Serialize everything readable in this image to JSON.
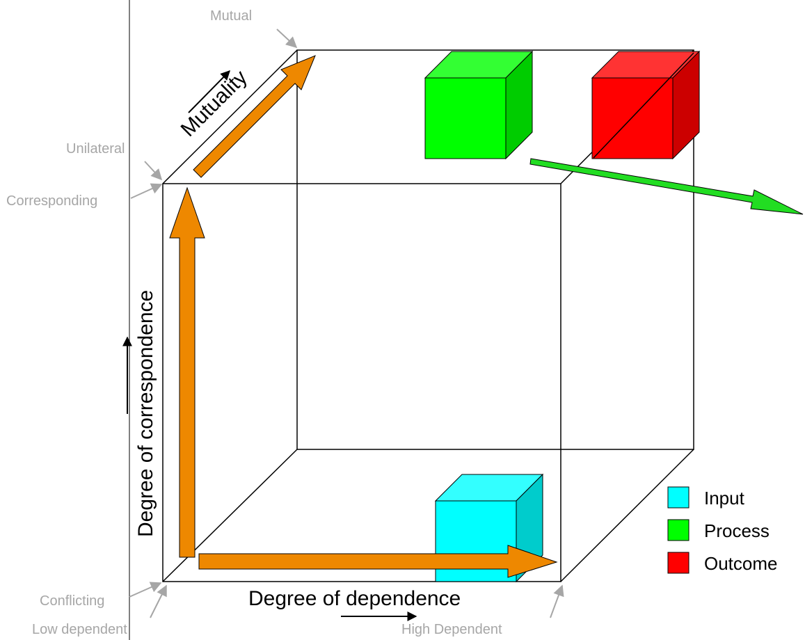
{
  "labels": {
    "mutual": "Mutual",
    "unilateral": "Unilateral",
    "corresponding": "Corresponding",
    "conflicting": "Conflicting",
    "low_dependent": "Low dependent",
    "high_dependent": "High Dependent"
  },
  "axes": {
    "mutuality": "Mutuality",
    "correspondence": "Degree of correspondence",
    "dependence": "Degree of dependence"
  },
  "legend": [
    {
      "label": "Input",
      "color": "#00ffff"
    },
    {
      "label": "Process",
      "color": "#00ff00"
    },
    {
      "label": "Outcome",
      "color": "#ff0000"
    }
  ],
  "colors": {
    "arrow_fill": "#ee8800",
    "gray_text": "#a6a6a6",
    "green_arrow": "#22dd22",
    "input_front": "#00ffff",
    "input_top": "#33ffff",
    "input_side": "#00cccc",
    "process_front": "#00ff00",
    "process_top": "#33ff33",
    "process_side": "#00cc00",
    "outcome_front": "#ff0000",
    "outcome_top": "#ff3333",
    "outcome_side": "#cc0000"
  }
}
